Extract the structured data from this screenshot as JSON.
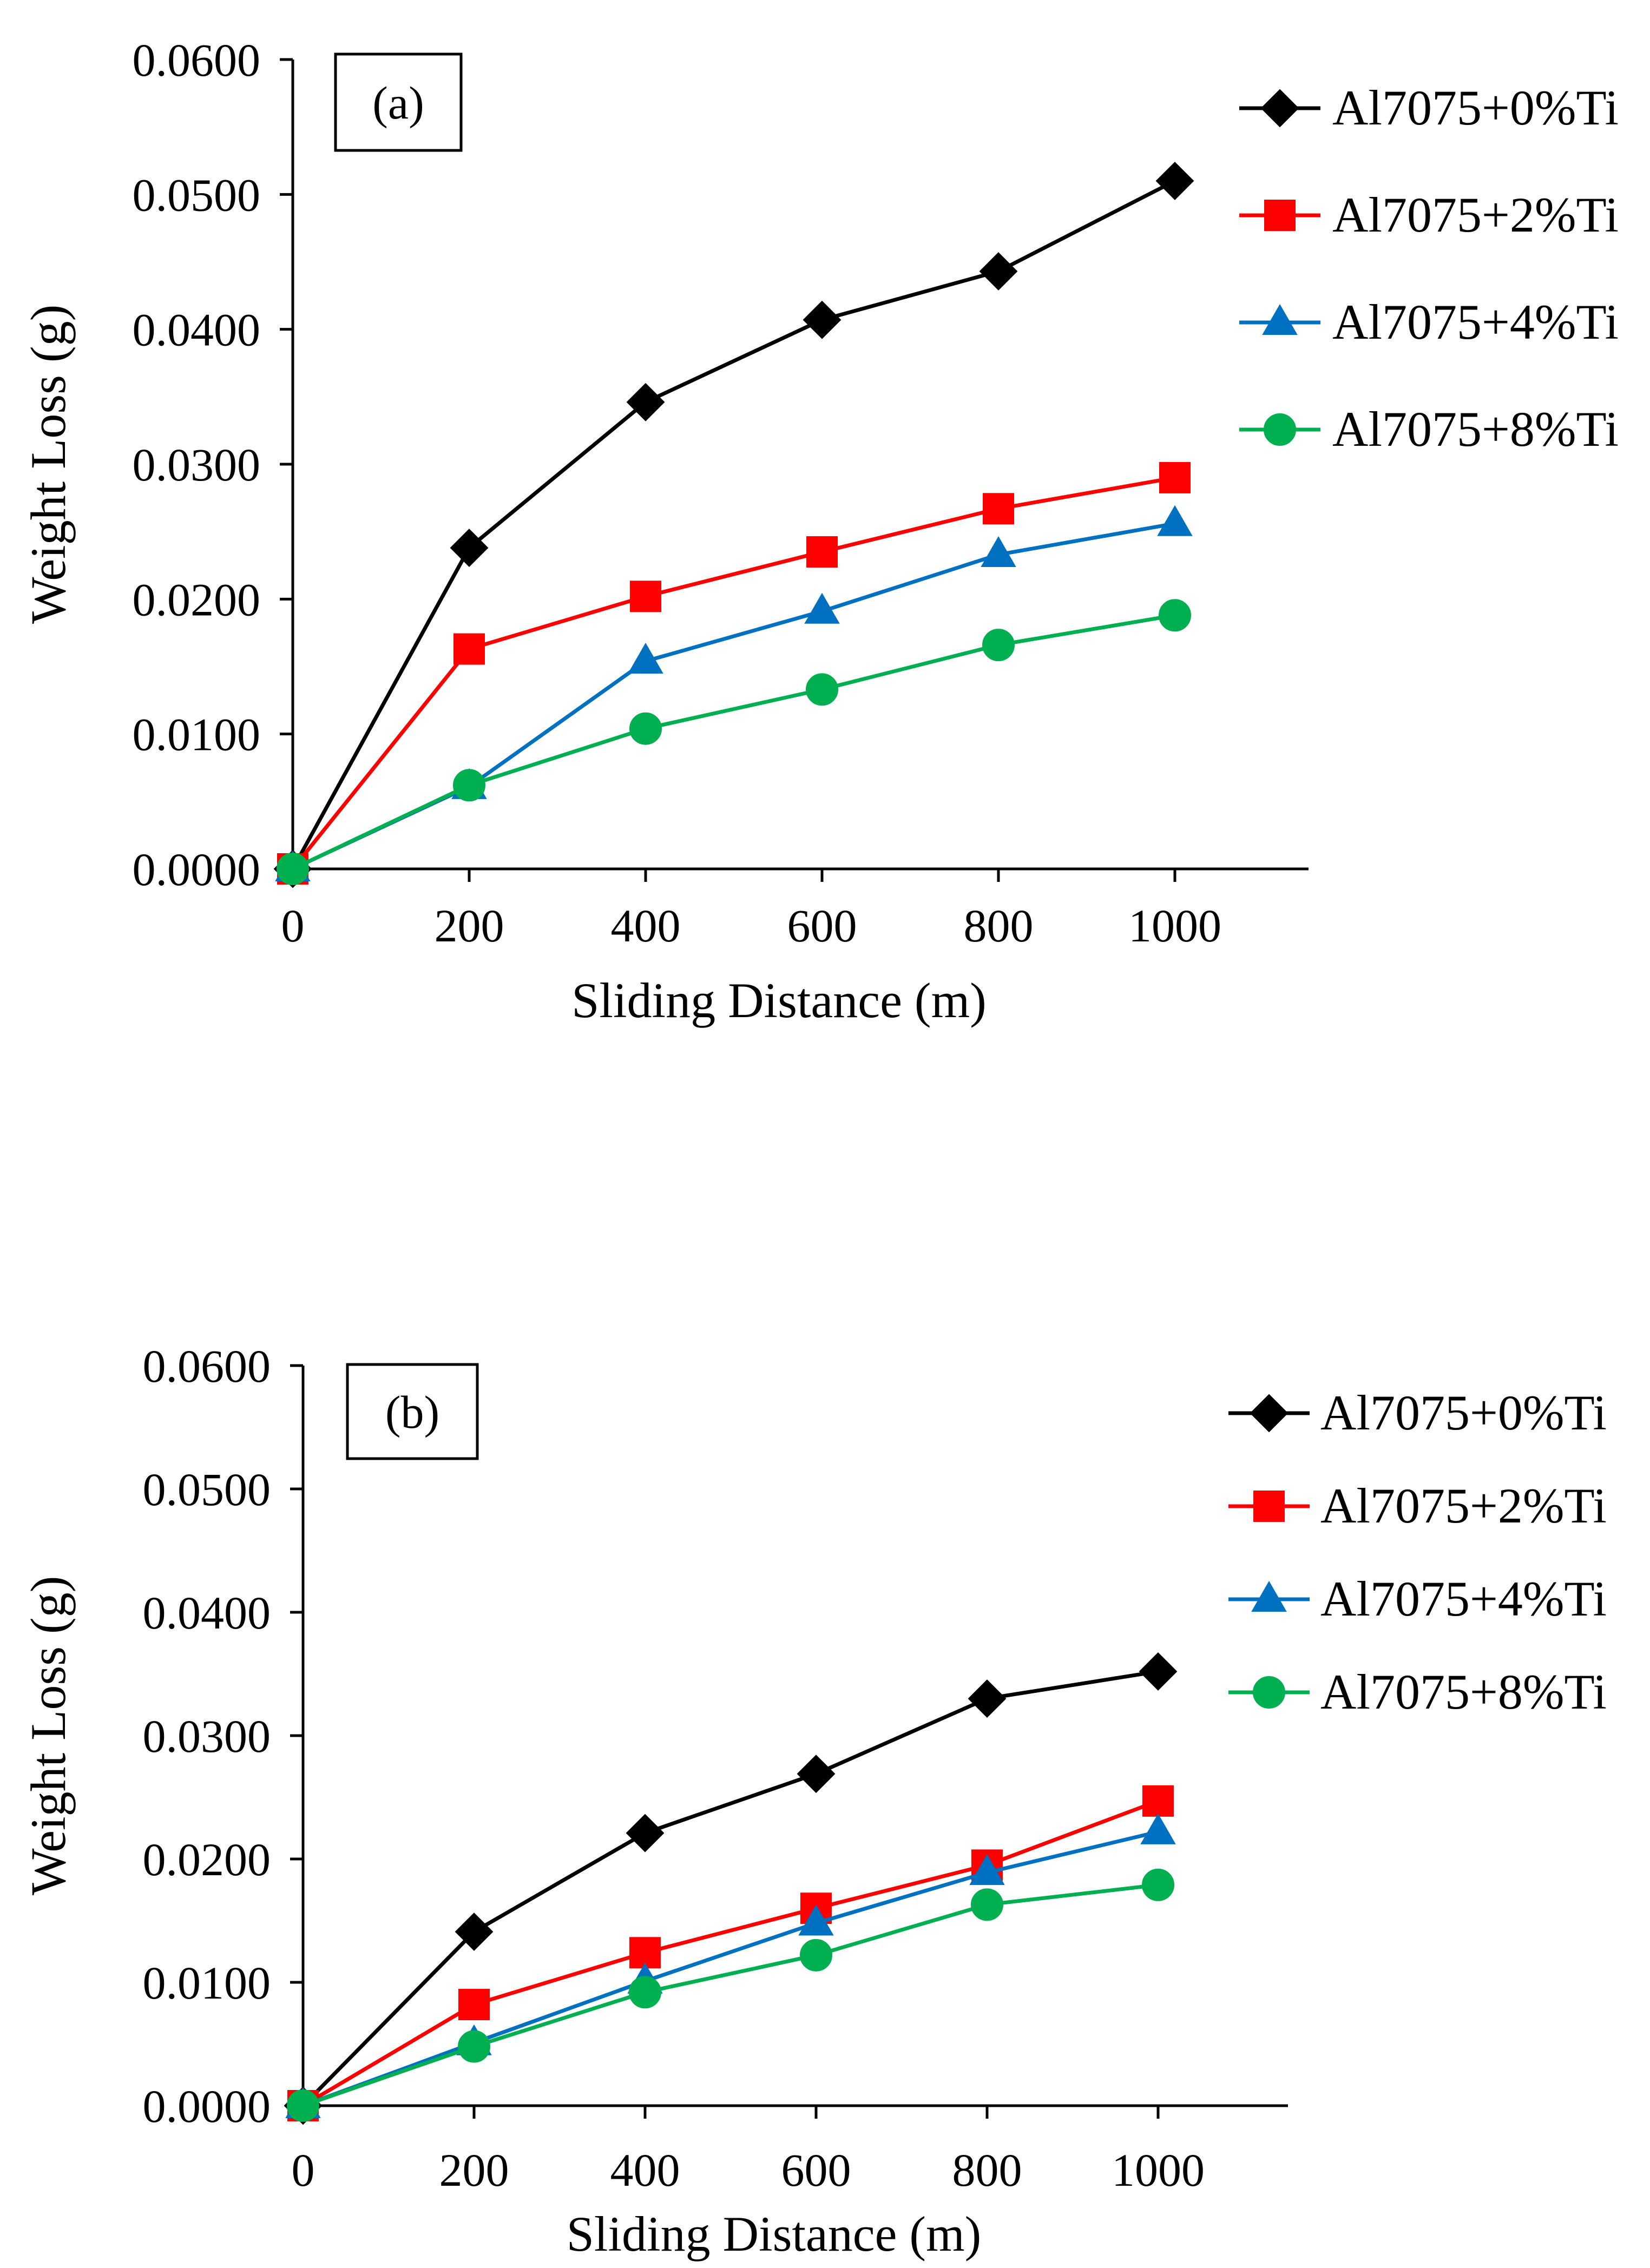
{
  "chart_data": [
    {
      "type": "line",
      "panel_label": "(a)",
      "xlabel": "Sliding Distance (m)",
      "ylabel": "Weight Loss (g)",
      "x": [
        0,
        200,
        400,
        600,
        800,
        1000
      ],
      "xticks": [
        "0",
        "200",
        "400",
        "600",
        "800",
        "1000"
      ],
      "xlim": [
        0,
        1150
      ],
      "ylim": [
        0,
        0.06
      ],
      "yticks": [
        "0.0000",
        "0.0100",
        "0.0200",
        "0.0300",
        "0.0400",
        "0.0500",
        "0.0600"
      ],
      "grid": false,
      "legend_position": "top-right",
      "series": [
        {
          "name": "Al7075+0%Ti",
          "marker": "diamond",
          "color": "#000000",
          "values": [
            0,
            0.0238,
            0.0346,
            0.0407,
            0.0443,
            0.051
          ]
        },
        {
          "name": "Al7075+2%Ti",
          "marker": "square",
          "color": "#ff0000",
          "values": [
            0,
            0.0163,
            0.0202,
            0.0235,
            0.0267,
            0.029
          ]
        },
        {
          "name": "Al7075+4%Ti",
          "marker": "triangle",
          "color": "#0070c0",
          "values": [
            0,
            0.0061,
            0.0154,
            0.0191,
            0.0233,
            0.0256
          ]
        },
        {
          "name": "Al7075+8%Ti",
          "marker": "circle",
          "color": "#00b050",
          "values": [
            0,
            0.0062,
            0.0104,
            0.0133,
            0.0166,
            0.0188
          ]
        }
      ]
    },
    {
      "type": "line",
      "panel_label": "(b)",
      "xlabel": "Sliding Distance (m)",
      "ylabel": "Weight Loss (g)",
      "x": [
        0,
        200,
        400,
        600,
        800,
        1000
      ],
      "xticks": [
        "0",
        "200",
        "400",
        "600",
        "800",
        "1000"
      ],
      "xlim": [
        0,
        1150
      ],
      "ylim": [
        0,
        0.06
      ],
      "yticks": [
        "0.0000",
        "0.0100",
        "0.0200",
        "0.0300",
        "0.0400",
        "0.0500",
        "0.0600"
      ],
      "grid": false,
      "legend_position": "top-right",
      "series": [
        {
          "name": "Al7075+0%Ti",
          "marker": "diamond",
          "color": "#000000",
          "values": [
            0,
            0.0141,
            0.0221,
            0.0269,
            0.033,
            0.0352
          ]
        },
        {
          "name": "Al7075+2%Ti",
          "marker": "square",
          "color": "#ff0000",
          "values": [
            0,
            0.0082,
            0.0124,
            0.016,
            0.0195,
            0.0247
          ]
        },
        {
          "name": "Al7075+4%Ti",
          "marker": "triangle",
          "color": "#0070c0",
          "values": [
            0,
            0.0051,
            0.0101,
            0.0148,
            0.0189,
            0.0222
          ]
        },
        {
          "name": "Al7075+8%Ti",
          "marker": "circle",
          "color": "#00b050",
          "values": [
            0,
            0.0048,
            0.0092,
            0.0122,
            0.0163,
            0.0179
          ]
        }
      ]
    }
  ]
}
